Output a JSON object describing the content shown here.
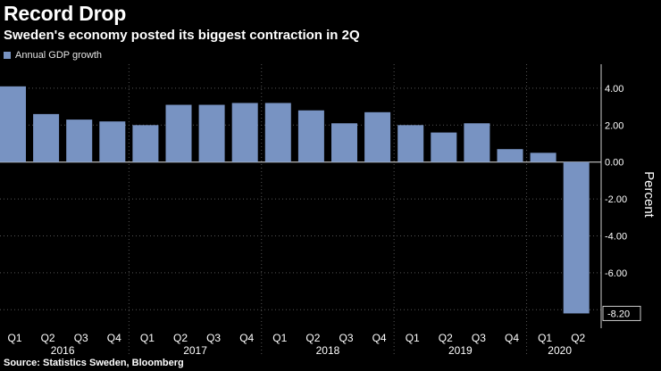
{
  "title": "Record Drop",
  "subtitle": "Sweden's economy posted its biggest contraction in 2Q",
  "source": "Source: Statistics Sweden, Bloomberg",
  "colors": {
    "bar": "#7893c2",
    "background": "#000000",
    "grid": "#555555",
    "text": "#ffffff"
  },
  "chart_data": {
    "type": "bar",
    "categories": [
      "Q1 2016",
      "Q2 2016",
      "Q3 2016",
      "Q4 2016",
      "Q1 2017",
      "Q2 2017",
      "Q3 2017",
      "Q4 2017",
      "Q1 2018",
      "Q2 2018",
      "Q3 2018",
      "Q4 2018",
      "Q1 2019",
      "Q2 2019",
      "Q3 2019",
      "Q4 2019",
      "Q1 2020",
      "Q2 2020"
    ],
    "quarter_labels": [
      "Q1",
      "Q2",
      "Q3",
      "Q4",
      "Q1",
      "Q2",
      "Q3",
      "Q4",
      "Q1",
      "Q2",
      "Q3",
      "Q4",
      "Q1",
      "Q2",
      "Q3",
      "Q4",
      "Q1",
      "Q2"
    ],
    "year_labels": [
      "2016",
      "2017",
      "2018",
      "2019",
      "2020"
    ],
    "series": [
      {
        "name": "Annual GDP growth",
        "values": [
          4.1,
          2.6,
          2.3,
          2.2,
          2.0,
          3.1,
          3.1,
          3.2,
          3.2,
          2.8,
          2.1,
          2.7,
          2.0,
          1.6,
          2.1,
          0.7,
          0.5,
          -8.2
        ]
      }
    ],
    "ylabel": "Percent",
    "ylim": [
      -9.0,
      5.3
    ],
    "yticks": [
      4,
      2,
      0,
      -2,
      -4,
      -6,
      -8
    ],
    "ytick_labels": [
      "4.00",
      "2.00",
      "0.00",
      "-2.00",
      "-4.00",
      "-6.00",
      "-8.00"
    ],
    "last_value_label": "-8.20",
    "grid": true,
    "legend": "top-left"
  }
}
